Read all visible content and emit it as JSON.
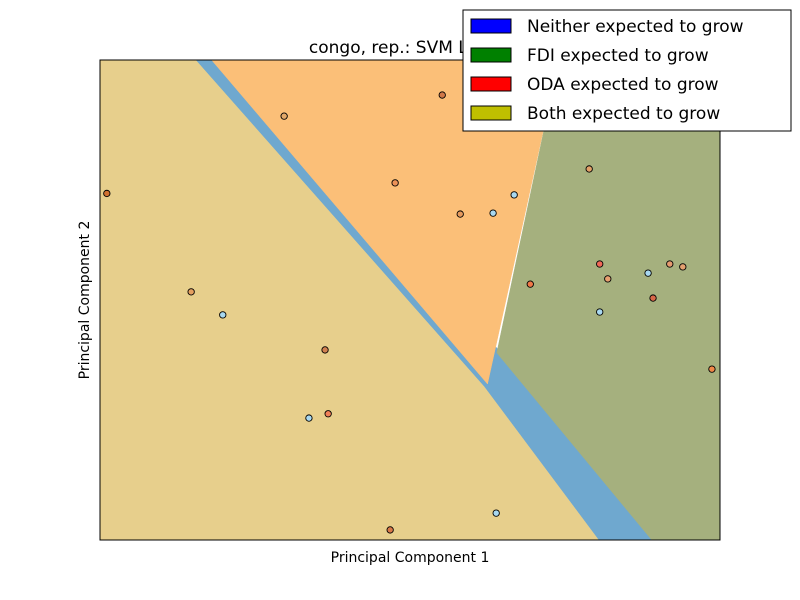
{
  "chart_data": {
    "type": "scatter",
    "title": "congo, rep.: SVM Linear",
    "xlabel": "Principal Component 1",
    "ylabel": "Principal Component 2",
    "xlim": [
      0,
      100
    ],
    "ylim": [
      0,
      100
    ],
    "grid": false,
    "legend_position": "top-right",
    "legend": [
      {
        "label": "Neither expected to grow",
        "color": "#0000ff"
      },
      {
        "label": "FDI expected to grow",
        "color": "#008000"
      },
      {
        "label": "ODA expected to grow",
        "color": "#ff0000"
      },
      {
        "label": "Both expected to grow",
        "color": "#bfbf00"
      }
    ],
    "regions": [
      {
        "class": "Both expected to grow",
        "color": "#e7cf8c",
        "polygon": [
          [
            0,
            100
          ],
          [
            16,
            100
          ],
          [
            62,
            32
          ],
          [
            80.5,
            0
          ],
          [
            0,
            0
          ]
        ]
      },
      {
        "class": "Neither expected to grow",
        "color": "#6fa8cf",
        "polygon": [
          [
            15.5,
            100
          ],
          [
            18,
            100
          ],
          [
            64,
            40
          ],
          [
            89,
            0
          ],
          [
            80.5,
            0
          ],
          [
            62,
            32
          ]
        ]
      },
      {
        "class": "ODA expected to grow",
        "color": "#fbbf78",
        "polygon": [
          [
            18,
            100
          ],
          [
            74,
            100
          ],
          [
            62.5,
            32.5
          ]
        ]
      },
      {
        "class": "FDI expected to grow",
        "color": "#a5b07e",
        "polygon": [
          [
            74,
            100
          ],
          [
            100,
            100
          ],
          [
            100,
            0
          ],
          [
            89,
            0
          ],
          [
            64,
            39
          ]
        ]
      }
    ],
    "points": [
      {
        "x": 1.1,
        "y": 72.2,
        "color": "#d07030"
      },
      {
        "x": 14.7,
        "y": 51.7,
        "color": "#e5a060"
      },
      {
        "x": 19.8,
        "y": 46.9,
        "color": "#a8d8f0"
      },
      {
        "x": 29.7,
        "y": 88.3,
        "color": "#e3a868"
      },
      {
        "x": 36.3,
        "y": 39.6,
        "color": "#d08050"
      },
      {
        "x": 33.7,
        "y": 25.4,
        "color": "#a8d8f0"
      },
      {
        "x": 36.8,
        "y": 26.3,
        "color": "#f08058"
      },
      {
        "x": 47.6,
        "y": 74.4,
        "color": "#ec9258"
      },
      {
        "x": 46.8,
        "y": 2.1,
        "color": "#d87848"
      },
      {
        "x": 55.2,
        "y": 92.7,
        "color": "#d07848"
      },
      {
        "x": 58.1,
        "y": 67.9,
        "color": "#e59a5e"
      },
      {
        "x": 63.4,
        "y": 68.1,
        "color": "#a8d8f0"
      },
      {
        "x": 66.8,
        "y": 71.9,
        "color": "#a8d8f0"
      },
      {
        "x": 63.9,
        "y": 5.6,
        "color": "#a8d8f0"
      },
      {
        "x": 69.4,
        "y": 53.3,
        "color": "#f07848"
      },
      {
        "x": 78.9,
        "y": 77.3,
        "color": "#e3a068"
      },
      {
        "x": 80.6,
        "y": 57.5,
        "color": "#f06858"
      },
      {
        "x": 81.9,
        "y": 54.4,
        "color": "#e8a070"
      },
      {
        "x": 80.6,
        "y": 47.5,
        "color": "#a8d8f0"
      },
      {
        "x": 88.4,
        "y": 55.6,
        "color": "#a8d8f0"
      },
      {
        "x": 89.2,
        "y": 50.4,
        "color": "#d86848"
      },
      {
        "x": 91.9,
        "y": 57.5,
        "color": "#e59a70"
      },
      {
        "x": 94.0,
        "y": 56.9,
        "color": "#e5a070"
      },
      {
        "x": 98.7,
        "y": 35.6,
        "color": "#f08848"
      }
    ]
  }
}
